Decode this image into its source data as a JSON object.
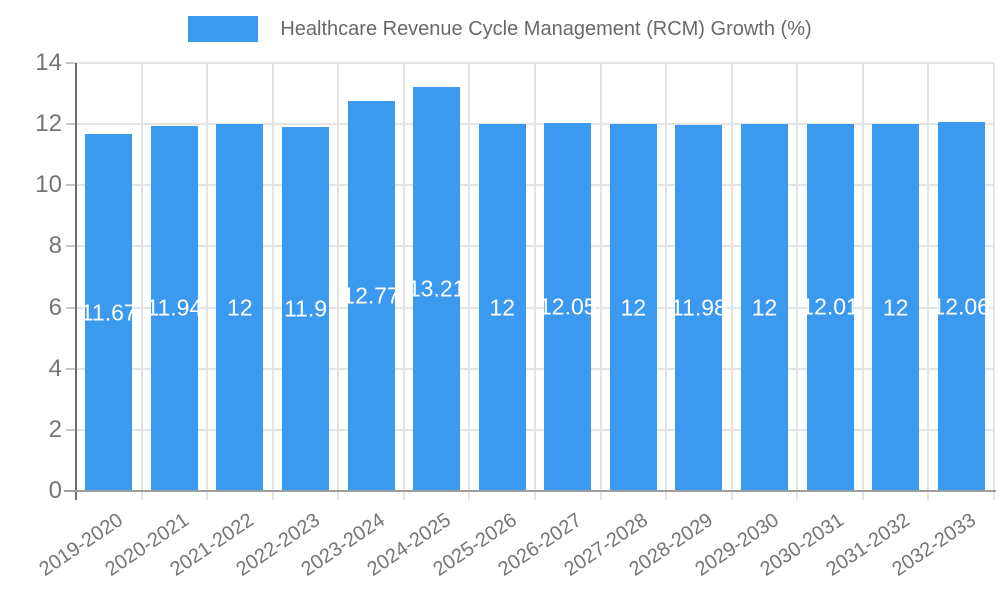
{
  "chart_data": {
    "type": "bar",
    "title": "Healthcare Revenue Cycle Management (RCM) Growth (%)",
    "xlabel": "",
    "ylabel": "",
    "categories": [
      "2019-2020",
      "2020-2021",
      "2021-2022",
      "2022-2023",
      "2023-2024",
      "2024-2025",
      "2025-2026",
      "2026-2027",
      "2027-2028",
      "2028-2029",
      "2029-2030",
      "2030-2031",
      "2031-2032",
      "2032-2033"
    ],
    "values": [
      11.67,
      11.94,
      12,
      11.9,
      12.77,
      13.21,
      12,
      12.05,
      12,
      11.98,
      12,
      12.01,
      12,
      12.06
    ],
    "bar_labels": [
      "11.67",
      "11.94",
      "12",
      "11.9",
      "12.77",
      "13.21",
      "12",
      "12.05",
      "12",
      "11.98",
      "12",
      "12.01",
      "12",
      "12.06"
    ],
    "ylim": [
      0,
      14
    ],
    "yticks": [
      0,
      2,
      4,
      6,
      8,
      10,
      12,
      14
    ],
    "grid": true,
    "legend_position": "top",
    "colors": {
      "bar": "#3B99F0",
      "grid": "#E4E4E4",
      "axis": "#6E6E6E",
      "baseline": "#9E9E9E",
      "tick": "#C8C8C8",
      "tick_text": "#757575",
      "value_label": "#FFFFFF",
      "legend_text": "#696969"
    }
  }
}
